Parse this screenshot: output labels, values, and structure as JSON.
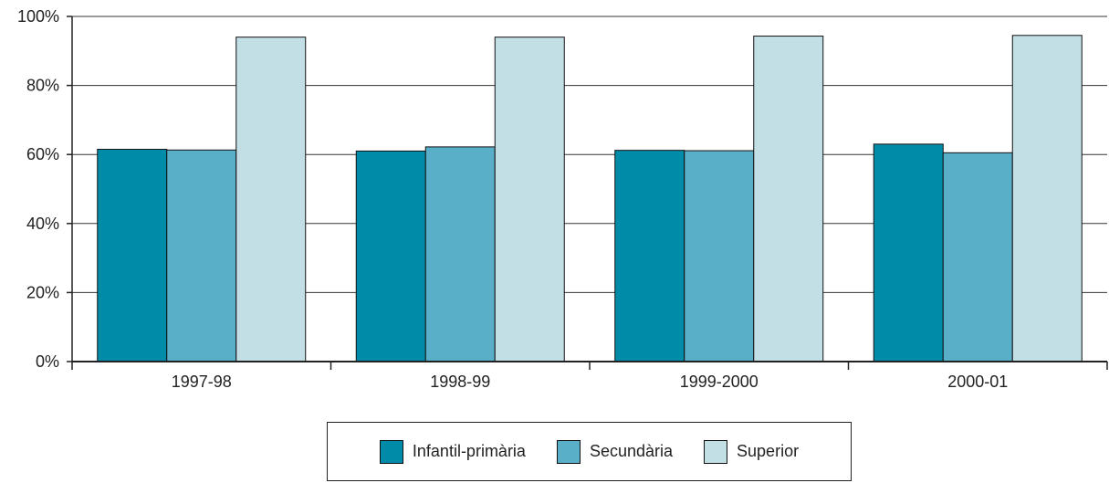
{
  "chart_data": {
    "type": "bar",
    "categories": [
      "1997-98",
      "1998-99",
      "1999-2000",
      "2000-01"
    ],
    "series": [
      {
        "name": "Infantil-primària",
        "values": [
          61.5,
          61,
          61.2,
          63
        ],
        "color": "#008ca8"
      },
      {
        "name": "Secundària",
        "values": [
          61.3,
          62.2,
          61.1,
          60.5
        ],
        "color": "#5aafc8"
      },
      {
        "name": "Superior",
        "values": [
          94,
          94,
          94.3,
          94.5
        ],
        "color": "#c3dfe6"
      }
    ],
    "y_ticks": [
      "0%",
      "20%",
      "40%",
      "60%",
      "80%",
      "100%"
    ],
    "ylim": [
      0,
      100
    ],
    "grid": true,
    "legend_position": "bottom"
  }
}
